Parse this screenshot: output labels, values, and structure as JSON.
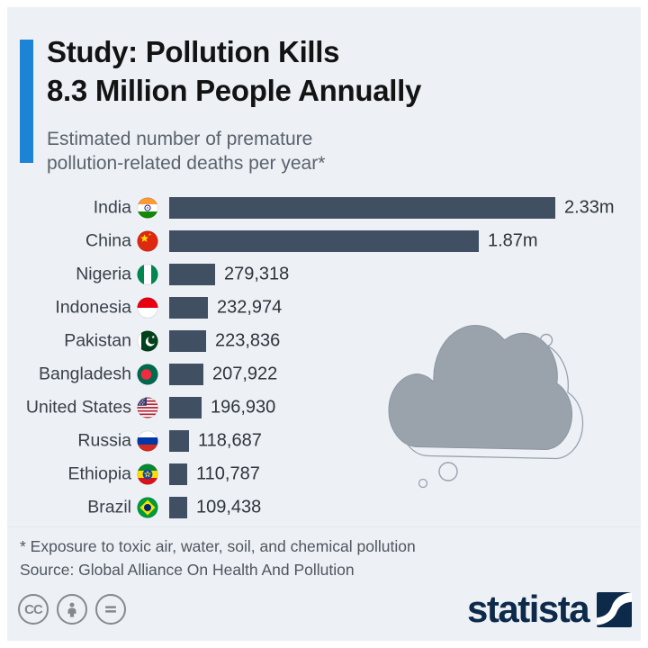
{
  "header": {
    "title_line1": "Study: Pollution Kills",
    "title_line2": "8.3 Million People Annually",
    "subtitle_line1": "Estimated number of premature",
    "subtitle_line2": "pollution-related deaths per year*",
    "accent_color": "#1d83d4"
  },
  "chart_data": {
    "type": "bar",
    "orientation": "horizontal",
    "title": "Study: Pollution Kills 8.3 Million People Annually",
    "subtitle": "Estimated number of premature pollution-related deaths per year*",
    "categories": [
      "India",
      "China",
      "Nigeria",
      "Indonesia",
      "Pakistan",
      "Bangladesh",
      "United States",
      "Russia",
      "Ethiopia",
      "Brazil"
    ],
    "values": [
      2330000,
      1870000,
      279318,
      232974,
      223836,
      207922,
      196930,
      118687,
      110787,
      109438
    ],
    "value_labels": [
      "2.33m",
      "1.87m",
      "279,318",
      "232,974",
      "223,836",
      "207,922",
      "196,930",
      "118,687",
      "110,787",
      "109,438"
    ],
    "flags": [
      "india",
      "china",
      "nigeria",
      "indonesia",
      "pakistan",
      "bangladesh",
      "usa",
      "russia",
      "ethiopia",
      "brazil"
    ],
    "xlim": [
      0,
      2330000
    ],
    "bar_color": "#405062",
    "grid": false,
    "legend": false,
    "ylabel": "",
    "xlabel": ""
  },
  "illustration": {
    "name": "smog-cloud",
    "fill_color": "#9aa2ac",
    "outline_color": "#8b96a3"
  },
  "footer": {
    "footnote": "* Exposure to toxic air, water, soil, and chemical pollution",
    "source": "Source: Global Alliance On Health And Pollution",
    "license_icons": [
      "cc",
      "attribution",
      "no-derivatives"
    ],
    "cc_label": "CC",
    "brand": "statista",
    "brand_color": "#0d2a4b"
  }
}
